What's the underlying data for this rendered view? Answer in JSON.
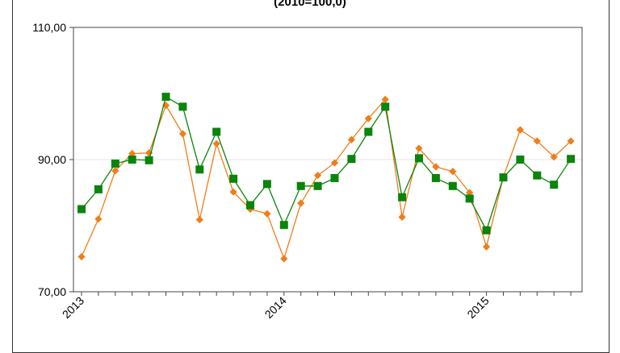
{
  "chart_data": {
    "type": "line",
    "title": "(2010=100,0)",
    "xlabel": "",
    "ylabel": "",
    "ylim": [
      70,
      110
    ],
    "yticks": [
      "70,00",
      "90,00",
      "110,00"
    ],
    "yticks_values": [
      70,
      90,
      110
    ],
    "xticks": [
      {
        "label": "2013",
        "index": 0
      },
      {
        "label": "2014",
        "index": 12
      },
      {
        "label": "2015",
        "index": 24
      }
    ],
    "grid": true,
    "series": [
      {
        "color": "#f07d1a",
        "marker": "diamond",
        "values": [
          75.3,
          81.0,
          88.3,
          90.9,
          91.0,
          98.2,
          93.9,
          80.9,
          92.4,
          85.1,
          82.5,
          81.8,
          75.0,
          83.4,
          87.6,
          89.5,
          93.0,
          96.2,
          99.1,
          81.3,
          91.7,
          88.9,
          88.2,
          85.0,
          76.8,
          87.4,
          94.5,
          92.8,
          90.4,
          92.8
        ]
      },
      {
        "color": "#0a840a",
        "marker": "square",
        "values": [
          82.5,
          85.5,
          89.4,
          90.0,
          89.9,
          99.5,
          98.0,
          88.5,
          94.2,
          87.1,
          83.1,
          86.3,
          80.1,
          86.0,
          86.0,
          87.2,
          90.1,
          94.2,
          98.0,
          84.3,
          90.2,
          87.2,
          86.0,
          84.1,
          79.3,
          87.3,
          90.0,
          87.6,
          86.2,
          90.1
        ]
      }
    ]
  }
}
